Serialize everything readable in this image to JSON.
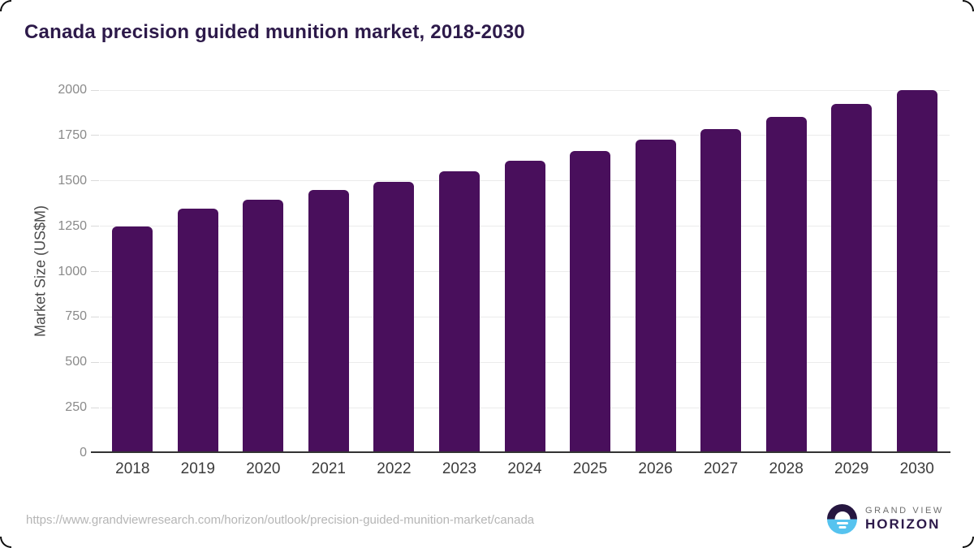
{
  "header": {
    "title": "Canada precision guided munition market, 2018-2030",
    "title_color": "#2d1a4a"
  },
  "chart_data": {
    "type": "bar",
    "title": "Canada precision guided munition market, 2018-2030",
    "categories": [
      "2018",
      "2019",
      "2020",
      "2021",
      "2022",
      "2023",
      "2024",
      "2025",
      "2026",
      "2027",
      "2028",
      "2029",
      "2030"
    ],
    "values": [
      1250,
      1348,
      1398,
      1449,
      1495,
      1552,
      1611,
      1666,
      1725,
      1787,
      1854,
      1923,
      1999
    ],
    "xlabel": "",
    "ylabel": "Market Size (US$M)",
    "ylim": [
      0,
      2000
    ],
    "ytick_step": 250,
    "grid": true,
    "legend": "none",
    "bar_color": "#490f5c",
    "gridline_color": "#ebebeb"
  },
  "footer": {
    "source_url": "https://www.grandviewresearch.com/horizon/outlook/precision-guided-munition-market/canada",
    "logo": {
      "line1": "GRAND VIEW",
      "line2": "HORIZON",
      "line2_color": "#2d1a4a",
      "icon_top_color": "#261640",
      "icon_bottom_color": "#56c3ef"
    }
  }
}
